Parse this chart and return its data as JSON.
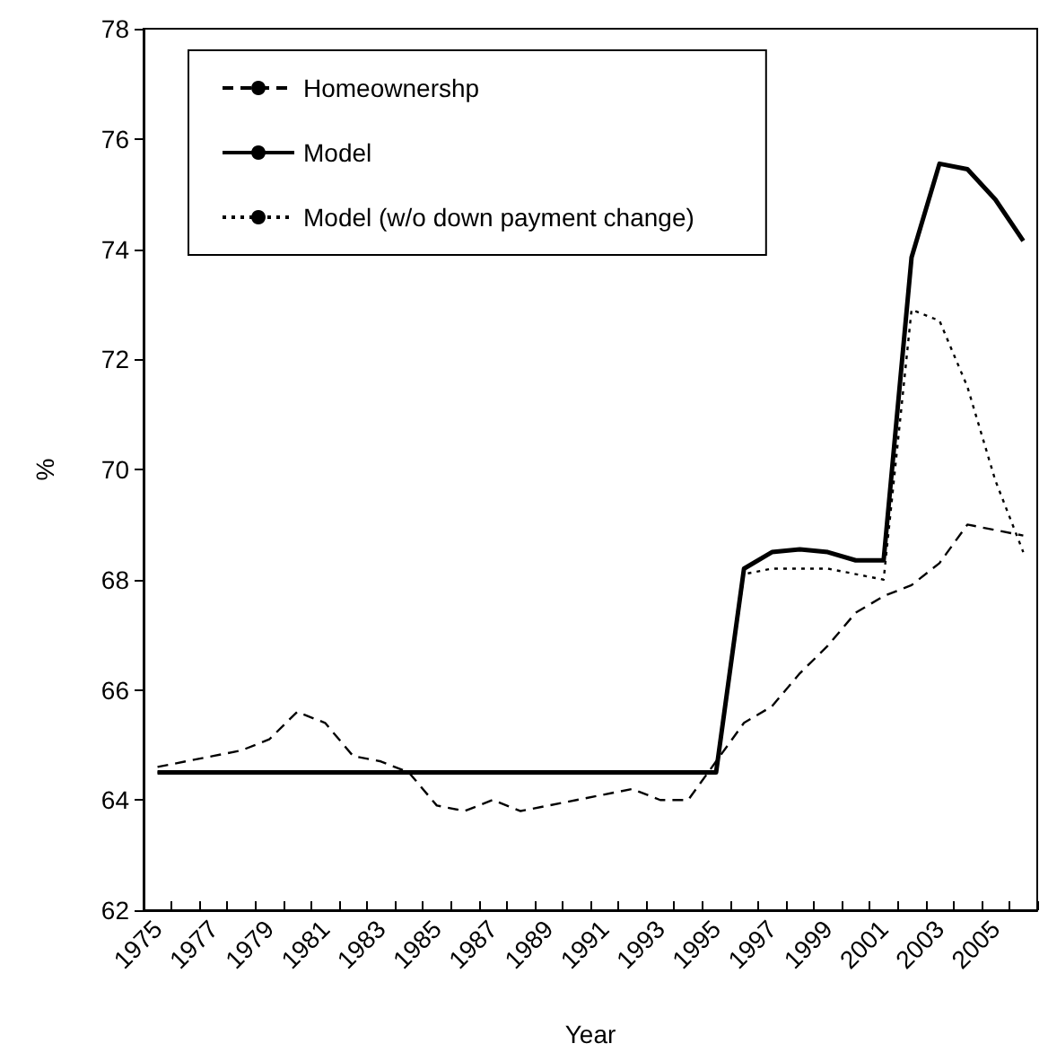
{
  "chart_data": {
    "type": "line",
    "xlabel": "Year",
    "ylabel": "%",
    "categories": [
      "1975",
      null,
      "1977",
      null,
      "1979",
      null,
      "1981",
      null,
      "1983",
      null,
      "1985",
      null,
      "1987",
      null,
      "1989",
      null,
      "1991",
      null,
      "1993",
      null,
      "1995",
      null,
      "1997",
      null,
      "1999",
      null,
      "2001",
      null,
      "2003",
      null,
      "2005",
      null
    ],
    "series": [
      {
        "name": "Homeownershp",
        "color": "#000000",
        "line_style": "dashed",
        "values": [
          64.6,
          64.7,
          64.8,
          64.9,
          65.1,
          65.6,
          65.4,
          64.8,
          64.7,
          64.5,
          63.9,
          63.8,
          64.0,
          63.8,
          63.9,
          64.0,
          64.1,
          64.2,
          64.0,
          64.0,
          64.7,
          65.4,
          65.7,
          66.3,
          66.8,
          67.4,
          67.7,
          67.9,
          68.3,
          69.0,
          68.9,
          68.8
        ]
      },
      {
        "name": "Model",
        "color": "#000000",
        "line_style": "solid",
        "values": [
          64.5,
          64.5,
          64.5,
          64.5,
          64.5,
          64.5,
          64.5,
          64.5,
          64.5,
          64.5,
          64.5,
          64.5,
          64.5,
          64.5,
          64.5,
          64.5,
          64.5,
          64.5,
          64.5,
          64.5,
          64.5,
          68.2,
          68.5,
          68.55,
          68.5,
          68.35,
          68.35,
          73.85,
          75.55,
          75.45,
          74.9,
          74.15
        ]
      },
      {
        "name": "Model (w/o down payment change)",
        "color": "#000000",
        "line_style": "dotted",
        "values": [
          64.5,
          64.5,
          64.5,
          64.5,
          64.5,
          64.5,
          64.5,
          64.5,
          64.5,
          64.5,
          64.5,
          64.5,
          64.5,
          64.5,
          64.5,
          64.5,
          64.5,
          64.5,
          64.5,
          64.5,
          64.5,
          68.1,
          68.2,
          68.2,
          68.2,
          68.1,
          68.0,
          72.9,
          72.7,
          71.5,
          69.8,
          68.5
        ]
      }
    ],
    "ylim": [
      62,
      78
    ],
    "yticks": [
      62,
      64,
      66,
      68,
      70,
      72,
      74,
      76,
      78
    ],
    "grid": false,
    "legend": "top left",
    "marker": "none"
  }
}
